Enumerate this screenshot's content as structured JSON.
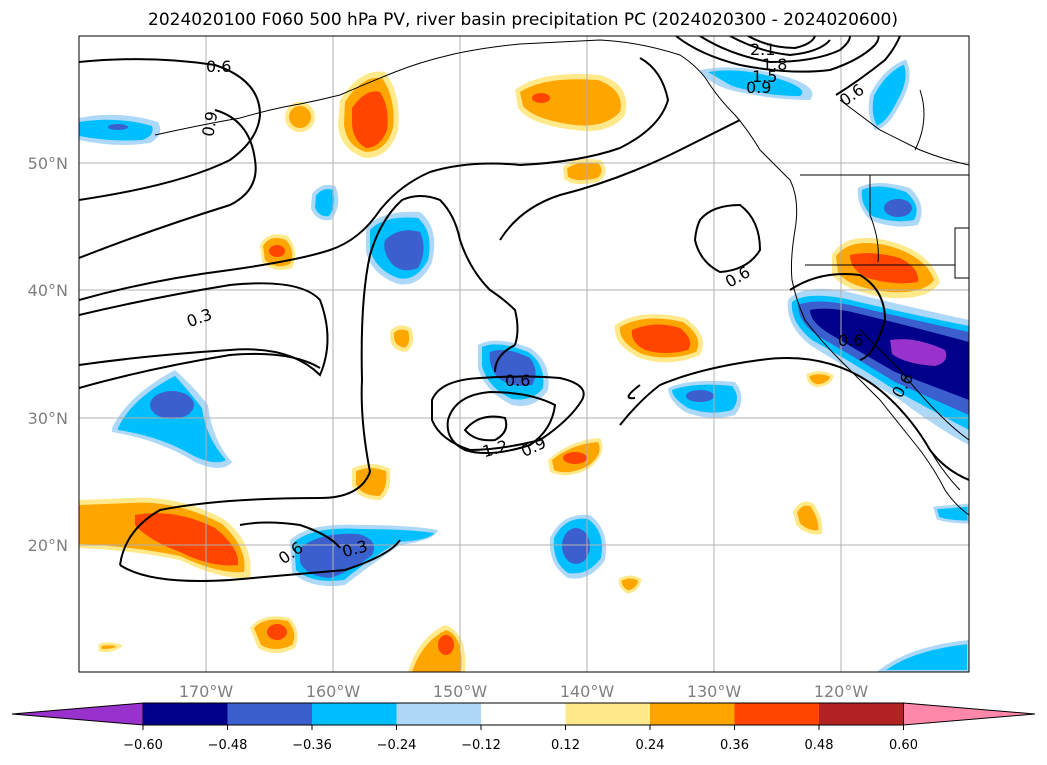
{
  "title": "2024020100 F060 500 hPa PV, river basin precipitation PC (2024020300 - 2024020600)",
  "lat_labels": [
    "50°N",
    "40°N",
    "30°N",
    "20°N"
  ],
  "lon_labels": [
    "170°W",
    "160°W",
    "150°W",
    "140°W",
    "130°W",
    "120°W"
  ],
  "colorbar": {
    "tick_labels": [
      "−0.60",
      "−0.48",
      "−0.36",
      "−0.24",
      "−0.12",
      "0.12",
      "0.24",
      "0.36",
      "0.48",
      "0.60"
    ],
    "colors": [
      "#9932cc",
      "#00008b",
      "#3b5fcd",
      "#00bfff",
      "#add8f7",
      "#ffffff",
      "#ffe98a",
      "#ffa500",
      "#ff4500",
      "#b22222",
      "#ff88aa"
    ]
  },
  "contour_labels": [
    "0.6",
    "0.9",
    "0.3",
    "0.6",
    "1.2",
    "0.9",
    "0.6",
    "0.6",
    "2.1",
    "1.8",
    "1.5",
    "0.9",
    "0.6",
    "0.6",
    "0.3",
    "0.6"
  ],
  "colors": {
    "purple": "#9932cc",
    "navy": "#00008b",
    "royal": "#3b5fcd",
    "sky": "#00bfff",
    "pale_blue": "#add8f7",
    "yellow": "#ffe98a",
    "orange": "#ffa500",
    "red_orange": "#ff4500"
  }
}
